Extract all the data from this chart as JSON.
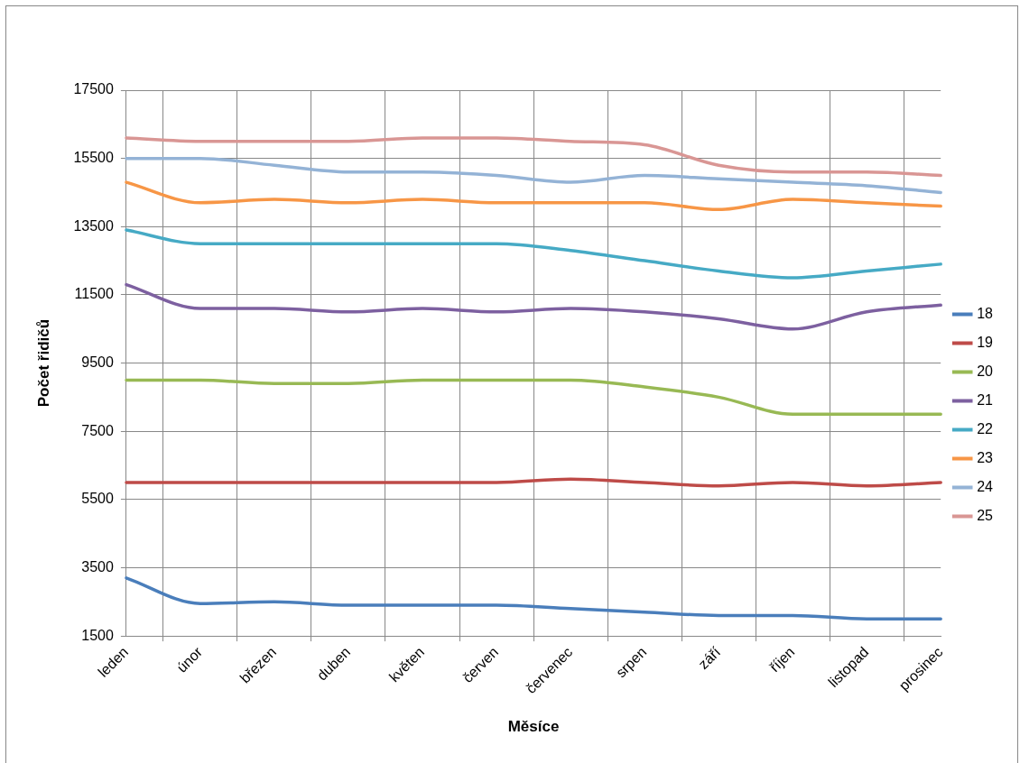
{
  "chart_data": {
    "type": "line",
    "xlabel": "Měsíce",
    "ylabel": "Počet řidičů",
    "categories": [
      "leden",
      "únor",
      "březen",
      "duben",
      "květen",
      "červen",
      "červenec",
      "srpen",
      "září",
      "říjen",
      "listopad",
      "prosinec"
    ],
    "series": [
      {
        "name": "18",
        "color": "#4a7ebb",
        "values": [
          3200,
          2450,
          2500,
          2400,
          2400,
          2400,
          2300,
          2200,
          2100,
          2100,
          2000,
          2000
        ]
      },
      {
        "name": "19",
        "color": "#be4b48",
        "values": [
          6000,
          6000,
          6000,
          6000,
          6000,
          6000,
          6100,
          6000,
          5900,
          6000,
          5900,
          6000
        ]
      },
      {
        "name": "20",
        "color": "#98b954",
        "values": [
          9000,
          9000,
          8900,
          8900,
          9000,
          9000,
          9000,
          8800,
          8500,
          8000,
          8000,
          8000
        ]
      },
      {
        "name": "21",
        "color": "#7d60a0",
        "values": [
          11800,
          11100,
          11100,
          11000,
          11100,
          11000,
          11100,
          11000,
          10800,
          10500,
          11000,
          11200
        ]
      },
      {
        "name": "22",
        "color": "#46aac5",
        "values": [
          13400,
          13000,
          13000,
          13000,
          13000,
          13000,
          12800,
          12500,
          12200,
          12000,
          12200,
          12400
        ]
      },
      {
        "name": "23",
        "color": "#f79646",
        "values": [
          14800,
          14200,
          14300,
          14200,
          14300,
          14200,
          14200,
          14200,
          14000,
          14300,
          14200,
          14100
        ]
      },
      {
        "name": "24",
        "color": "#94b3d6",
        "values": [
          15500,
          15500,
          15300,
          15100,
          15100,
          15000,
          14800,
          15000,
          14900,
          14800,
          14700,
          14500
        ]
      },
      {
        "name": "25",
        "color": "#d99694",
        "values": [
          16100,
          16000,
          16000,
          16000,
          16100,
          16100,
          16000,
          15900,
          15300,
          15100,
          15100,
          15000
        ]
      }
    ],
    "ylim": [
      1500,
      17500
    ],
    "yticks": [
      1500,
      3500,
      5500,
      7500,
      9500,
      11500,
      13500,
      15500,
      17500
    ],
    "grid": true,
    "legend": "right",
    "marker": "none",
    "line_style": "solid"
  }
}
